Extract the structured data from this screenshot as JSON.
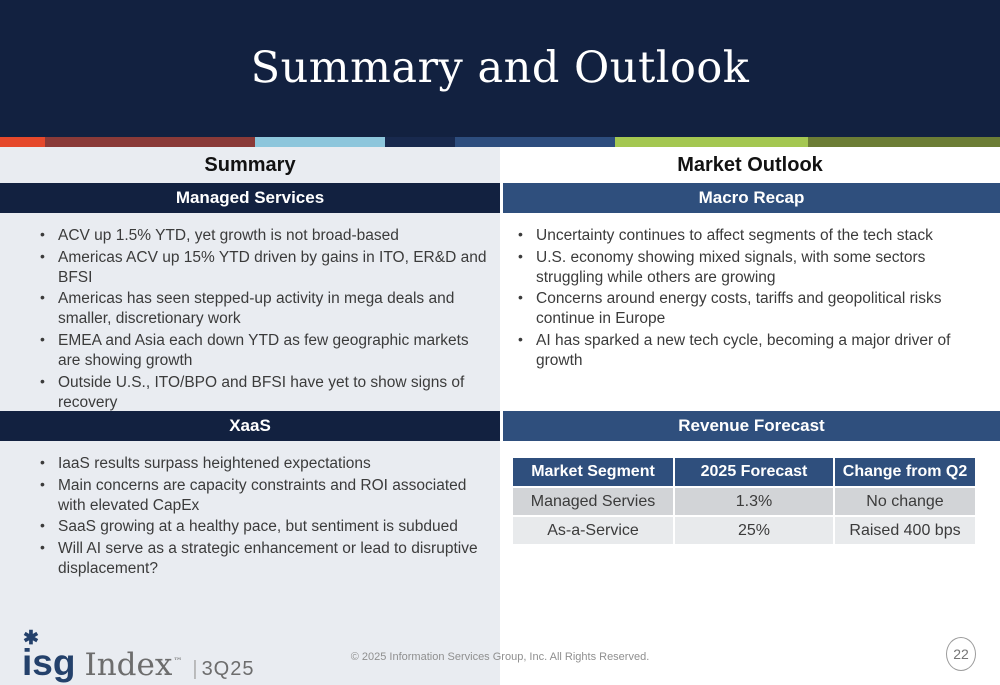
{
  "title": "Summary and Outlook",
  "theme": {
    "header_navy": "#122140",
    "section_bar_navy": "#122140",
    "section_bar_blue": "#2f4f7d",
    "left_column_bg": "#e9ecf1",
    "right_column_bg": "#ffffff",
    "body_text": "#3b3b3b",
    "stripe_colors": [
      "#e5482b",
      "#8a3a38",
      "#8dc6dc",
      "#18294e",
      "#2d4d7e",
      "#a4c751",
      "#6c7d35"
    ],
    "table_row_gray": "#d2d4d7",
    "table_row_light": "#e8eaec"
  },
  "left": {
    "header": "Summary",
    "sections": [
      {
        "title": "Managed Services",
        "bullets": [
          "ACV up 1.5% YTD, yet growth is not broad-based",
          "Americas ACV up 15% YTD driven by gains in ITO, ER&D and BFSI",
          "Americas has seen stepped-up activity in mega deals and smaller, discretionary work",
          "EMEA and Asia each down YTD as few geographic markets are showing growth",
          "Outside U.S., ITO/BPO and BFSI have yet to show signs of recovery"
        ]
      },
      {
        "title": "XaaS",
        "bullets": [
          "IaaS results surpass heightened expectations",
          "Main concerns are capacity constraints and ROI associated with elevated CapEx",
          "SaaS growing at a healthy pace, but sentiment is subdued",
          "Will AI serve as a strategic enhancement or lead to disruptive displacement?"
        ]
      }
    ]
  },
  "right": {
    "header": "Market Outlook",
    "sections": [
      {
        "title": "Macro Recap",
        "bullets": [
          "Uncertainty continues to affect segments of the tech stack",
          "U.S. economy showing mixed signals, with some sectors struggling while others are growing",
          "Concerns around energy costs, tariffs and geopolitical risks continue in Europe",
          "AI has sparked a new tech cycle, becoming a major driver of growth"
        ]
      },
      {
        "title": "Revenue Forecast"
      }
    ],
    "table": {
      "headers": [
        "Market Segment",
        "2025 Forecast",
        "Change from Q2"
      ],
      "rows": [
        {
          "cells": [
            "Managed Servies",
            "1.3%",
            "No change"
          ]
        },
        {
          "cells": [
            "As-a-Service",
            "25%",
            "Raised 400 bps"
          ]
        }
      ]
    }
  },
  "footer": {
    "logo": {
      "asterisk_icon": "✱",
      "isg": "isg",
      "index": "Index",
      "tm": "™",
      "divider": "|",
      "edition": "3Q25"
    },
    "copyright": "© 2025 Information Services Group, Inc.  All Rights Reserved.",
    "page_number": "22"
  }
}
